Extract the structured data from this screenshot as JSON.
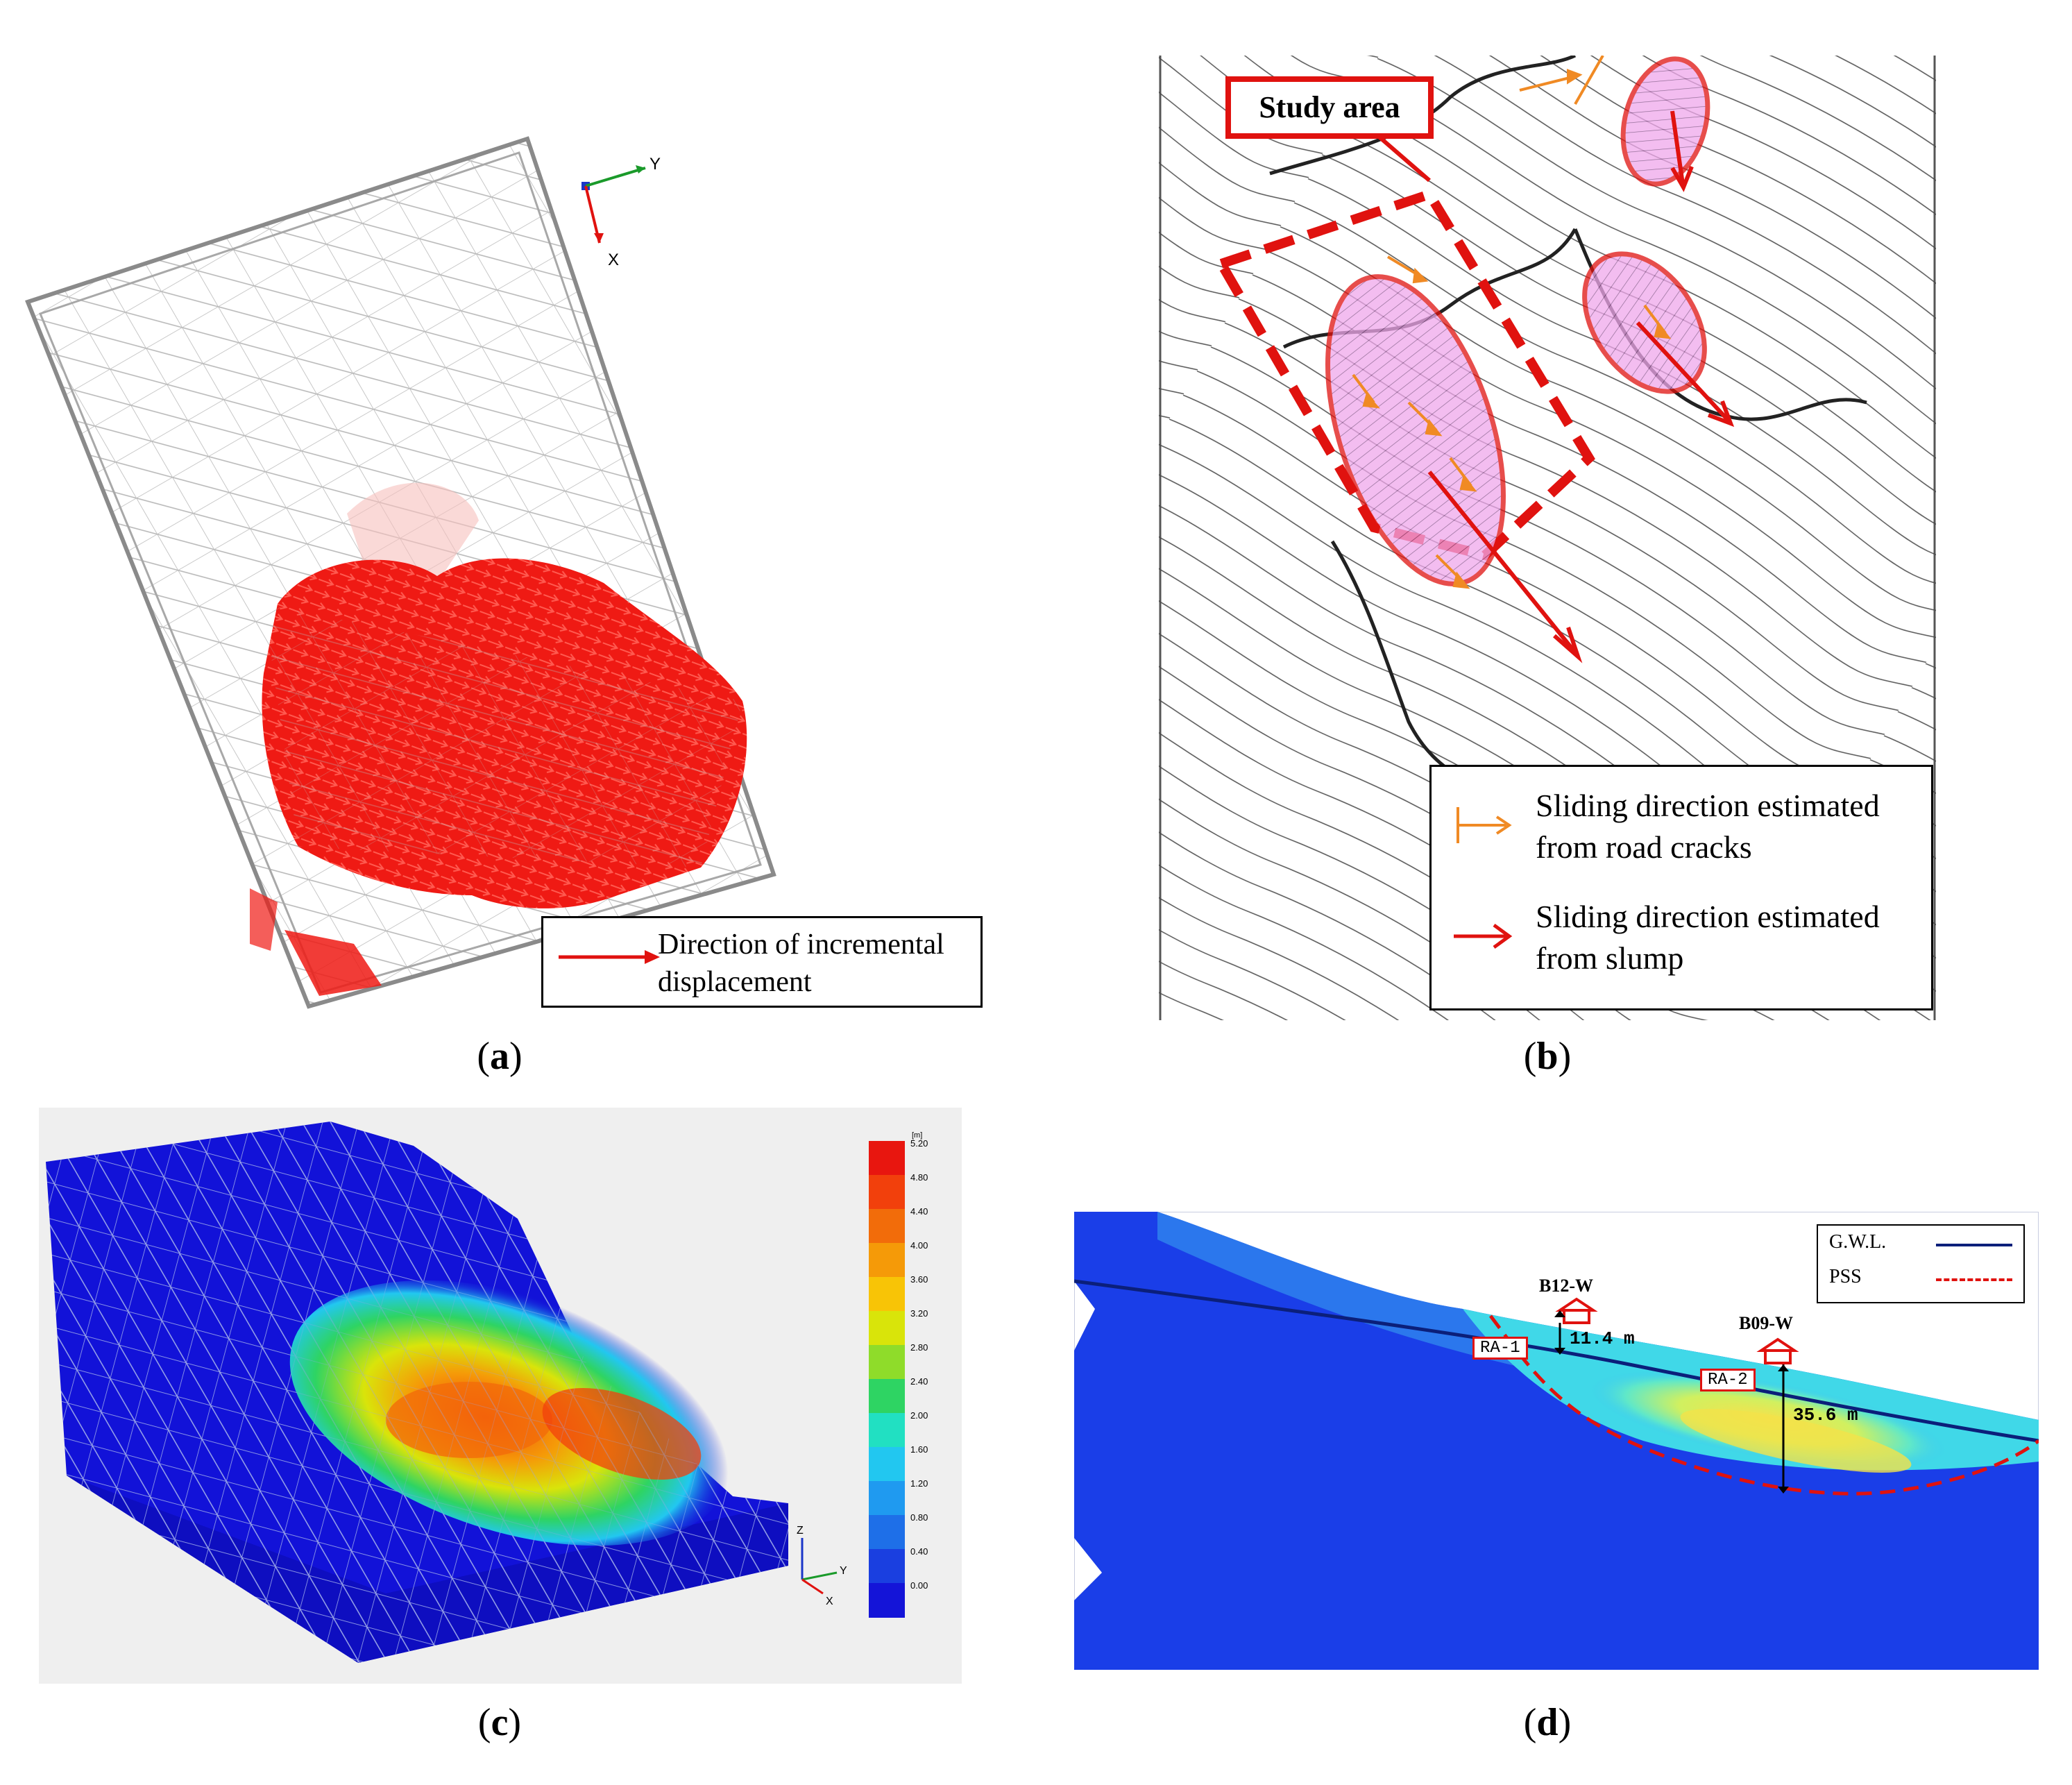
{
  "figure": {
    "panels": [
      {
        "id": "a",
        "caption": "a",
        "axis_labels": [
          "Y",
          "X"
        ],
        "legend": {
          "label": "Direction of incremental displacement",
          "line1": "Direction of incremental",
          "line2": "displacement",
          "color": "#e0120f"
        }
      },
      {
        "id": "b",
        "caption": "b",
        "study_area_label": "Study area",
        "legend": [
          {
            "line1": "Sliding direction estimated",
            "line2": "from road cracks",
            "color": "#f08a24"
          },
          {
            "line1": "Sliding direction estimated",
            "line2": "from slump",
            "color": "#e0120f"
          }
        ]
      },
      {
        "id": "c",
        "caption": "c",
        "colorbar": {
          "unit": "[m]",
          "ticks": [
            "5.20",
            "4.80",
            "4.40",
            "4.00",
            "3.60",
            "3.20",
            "2.80",
            "2.40",
            "2.00",
            "1.60",
            "1.20",
            "0.80",
            "0.40",
            "0.00"
          ],
          "colors": [
            "#e8160f",
            "#f2400c",
            "#f26c0a",
            "#f59a08",
            "#f8c406",
            "#d9e40a",
            "#8fdc2a",
            "#2ed463",
            "#21e0c2",
            "#22c7f0",
            "#1f9af0",
            "#1e6fe8",
            "#1a3fe0",
            "#1414d8"
          ]
        },
        "axis_labels": [
          "Z",
          "Y",
          "X"
        ]
      },
      {
        "id": "d",
        "caption": "d",
        "legend": [
          {
            "label": "G.W.L.",
            "color": "#0b1f7a",
            "style": "solid"
          },
          {
            "label": "PSS",
            "color": "#e0120f",
            "style": "dashed"
          }
        ],
        "wells": [
          {
            "name": "B12-W",
            "depth": "11.4 m",
            "zone": "RA-1"
          },
          {
            "name": "B09-W",
            "depth": "35.6 m",
            "zone": "RA-2"
          }
        ]
      }
    ]
  }
}
